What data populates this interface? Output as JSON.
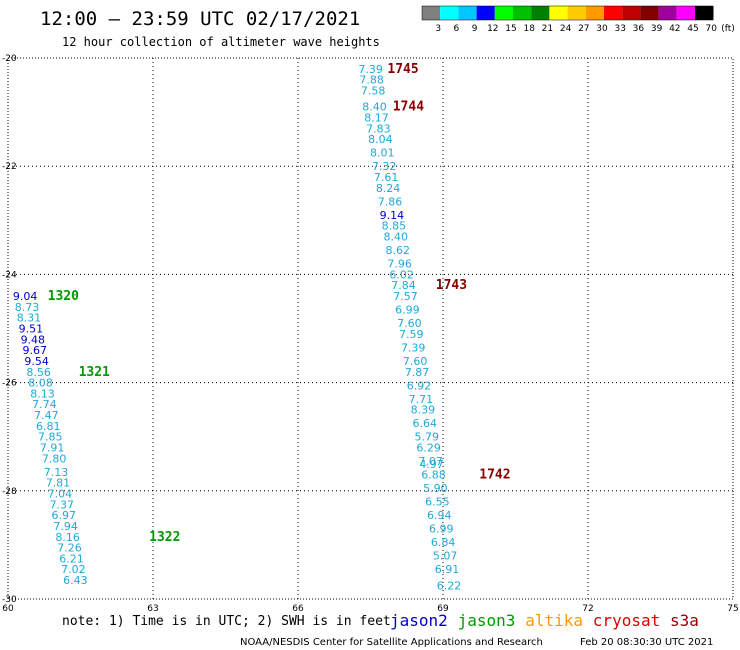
{
  "header": {
    "title": "12:00 — 23:59 UTC 02/17/2021",
    "subtitle": "12 hour collection of altimeter wave heights"
  },
  "colorbar": {
    "labels": [
      "3",
      "6",
      "9",
      "12",
      "15",
      "18",
      "21",
      "24",
      "27",
      "30",
      "33",
      "36",
      "39",
      "42",
      "45",
      "70"
    ],
    "unit": "(ft)",
    "colors": [
      "#808080",
      "#00ffff",
      "#00c8ff",
      "#0000ff",
      "#00ff00",
      "#00c000",
      "#008000",
      "#ffff00",
      "#ffcc00",
      "#ff9900",
      "#ff0000",
      "#c00000",
      "#800000",
      "#a000a0",
      "#ff00ff",
      "#000000"
    ]
  },
  "footer": {
    "note": "note: 1) Time is in UTC; 2) SWH is in feet",
    "satellites": [
      {
        "name": "jason2",
        "color": "#0000cc"
      },
      {
        "name": "jason3",
        "color": "#009900"
      },
      {
        "name": "altika",
        "color": "#ff9900"
      },
      {
        "name": "cryosat",
        "color": "#dd0000"
      },
      {
        "name": "s3a",
        "color": "#990000"
      }
    ],
    "credit": "NOAA/NESDIS Center for Satellite Applications and Research",
    "timestamp": "Feb 20 08:30:30 UTC 2021"
  },
  "chart_data": {
    "type": "scatter",
    "x_ticks": [
      "60",
      "63",
      "66",
      "69",
      "72",
      "75"
    ],
    "y_ticks": [
      "-20",
      "-22",
      "-24",
      "-26",
      "-28",
      "-30"
    ],
    "xlim": [
      60,
      75
    ],
    "ylim": [
      -30,
      -20
    ],
    "grid": true,
    "tracks": [
      {
        "satellite": "s3a",
        "color": "#1ea9d8",
        "points": [
          {
            "x": 67.25,
            "y": -20.2,
            "v": "7.39"
          },
          {
            "x": 67.27,
            "y": -20.4,
            "v": "7.88"
          },
          {
            "x": 67.3,
            "y": -20.6,
            "v": "7.58"
          },
          {
            "x": 67.33,
            "y": -20.9,
            "v": "8.40"
          },
          {
            "x": 67.37,
            "y": -21.1,
            "v": "8.17"
          },
          {
            "x": 67.41,
            "y": -21.3,
            "v": "7.83"
          },
          {
            "x": 67.45,
            "y": -21.5,
            "v": "8.04"
          },
          {
            "x": 67.49,
            "y": -21.75,
            "v": "8.01"
          },
          {
            "x": 67.53,
            "y": -22.0,
            "v": "7.32"
          },
          {
            "x": 67.57,
            "y": -22.2,
            "v": "7.61"
          },
          {
            "x": 67.61,
            "y": -22.4,
            "v": "8.24"
          },
          {
            "x": 67.65,
            "y": -22.65,
            "v": "7.86"
          },
          {
            "x": 67.69,
            "y": -22.9,
            "v": "9.14",
            "c": "#0000cc"
          },
          {
            "x": 67.73,
            "y": -23.1,
            "v": "8.85"
          },
          {
            "x": 67.77,
            "y": -23.3,
            "v": "8.40"
          },
          {
            "x": 67.81,
            "y": -23.55,
            "v": "8.62"
          },
          {
            "x": 67.85,
            "y": -23.8,
            "v": "7.96"
          },
          {
            "x": 67.89,
            "y": -24.0,
            "v": "6.02"
          },
          {
            "x": 67.93,
            "y": -24.2,
            "v": "7.84"
          },
          {
            "x": 67.97,
            "y": -24.4,
            "v": "7.57"
          },
          {
            "x": 68.01,
            "y": -24.65,
            "v": "6.99"
          },
          {
            "x": 68.05,
            "y": -24.9,
            "v": "7.60"
          },
          {
            "x": 68.09,
            "y": -25.1,
            "v": "7.59"
          },
          {
            "x": 68.13,
            "y": -25.35,
            "v": "7.39"
          },
          {
            "x": 68.17,
            "y": -25.6,
            "v": "7.60"
          },
          {
            "x": 68.21,
            "y": -25.8,
            "v": "7.87"
          },
          {
            "x": 68.25,
            "y": -26.05,
            "v": "6.92"
          },
          {
            "x": 68.29,
            "y": -26.3,
            "v": "7.71"
          },
          {
            "x": 68.33,
            "y": -26.5,
            "v": "8.39"
          },
          {
            "x": 68.37,
            "y": -26.75,
            "v": "6.64"
          },
          {
            "x": 68.41,
            "y": -27.0,
            "v": "5.79"
          },
          {
            "x": 68.45,
            "y": -27.2,
            "v": "6.29"
          },
          {
            "x": 68.49,
            "y": -27.45,
            "v": "7.07"
          },
          {
            "x": 68.51,
            "y": -27.5,
            "v": "4.97"
          },
          {
            "x": 68.55,
            "y": -27.7,
            "v": "6.88"
          },
          {
            "x": 68.59,
            "y": -27.95,
            "v": "5.90"
          },
          {
            "x": 68.63,
            "y": -28.2,
            "v": "6.55"
          },
          {
            "x": 68.67,
            "y": -28.45,
            "v": "6.94"
          },
          {
            "x": 68.71,
            "y": -28.7,
            "v": "6.99"
          },
          {
            "x": 68.75,
            "y": -28.95,
            "v": "6.84"
          },
          {
            "x": 68.79,
            "y": -29.2,
            "v": "5.07"
          },
          {
            "x": 68.83,
            "y": -29.45,
            "v": "6.91"
          },
          {
            "x": 68.87,
            "y": -29.75,
            "v": "6.22"
          }
        ],
        "pass_labels": [
          {
            "x": 67.85,
            "y": -20.2,
            "t": "1745"
          },
          {
            "x": 67.96,
            "y": -20.9,
            "t": "1744"
          },
          {
            "x": 68.85,
            "y": -24.2,
            "t": "1743"
          },
          {
            "x": 69.75,
            "y": -27.7,
            "t": "1742"
          }
        ]
      },
      {
        "satellite": "jason3",
        "color": "#1ea9d8",
        "points": [
          {
            "x": 60.1,
            "y": -24.4,
            "v": "9.04",
            "c": "#0000cc"
          },
          {
            "x": 60.14,
            "y": -24.6,
            "v": "8.73"
          },
          {
            "x": 60.18,
            "y": -24.8,
            "v": "8.31"
          },
          {
            "x": 60.22,
            "y": -25.0,
            "v": "9.51",
            "c": "#0000cc"
          },
          {
            "x": 60.26,
            "y": -25.2,
            "v": "9.48",
            "c": "#0000cc"
          },
          {
            "x": 60.3,
            "y": -25.4,
            "v": "9.67",
            "c": "#0000cc"
          },
          {
            "x": 60.34,
            "y": -25.6,
            "v": "9.54",
            "c": "#0000cc"
          },
          {
            "x": 60.38,
            "y": -25.8,
            "v": "8.56"
          },
          {
            "x": 60.42,
            "y": -26.0,
            "v": "8.08"
          },
          {
            "x": 60.46,
            "y": -26.2,
            "v": "8.13"
          },
          {
            "x": 60.5,
            "y": -26.4,
            "v": "7.74"
          },
          {
            "x": 60.54,
            "y": -26.6,
            "v": "7.47"
          },
          {
            "x": 60.58,
            "y": -26.8,
            "v": "6.81"
          },
          {
            "x": 60.62,
            "y": -27.0,
            "v": "7.85"
          },
          {
            "x": 60.66,
            "y": -27.2,
            "v": "7.91"
          },
          {
            "x": 60.7,
            "y": -27.4,
            "v": "7.80"
          },
          {
            "x": 60.74,
            "y": -27.65,
            "v": "7.13"
          },
          {
            "x": 60.78,
            "y": -27.85,
            "v": "7.81"
          },
          {
            "x": 60.82,
            "y": -28.05,
            "v": "7.04"
          },
          {
            "x": 60.86,
            "y": -28.25,
            "v": "7.37"
          },
          {
            "x": 60.9,
            "y": -28.45,
            "v": "6.97"
          },
          {
            "x": 60.94,
            "y": -28.65,
            "v": "7.94"
          },
          {
            "x": 60.98,
            "y": -28.85,
            "v": "8.16"
          },
          {
            "x": 61.02,
            "y": -29.05,
            "v": "7.26"
          },
          {
            "x": 61.06,
            "y": -29.25,
            "v": "6.21"
          },
          {
            "x": 61.1,
            "y": -29.45,
            "v": "7.02"
          },
          {
            "x": 61.14,
            "y": -29.65,
            "v": "6.43"
          }
        ],
        "pass_labels": [
          {
            "x": 60.82,
            "y": -24.4,
            "t": "1320",
            "c": "#009900"
          },
          {
            "x": 61.46,
            "y": -25.8,
            "t": "1321",
            "c": "#009900"
          },
          {
            "x": 62.92,
            "y": -28.85,
            "t": "1322",
            "c": "#009900"
          }
        ]
      }
    ]
  }
}
